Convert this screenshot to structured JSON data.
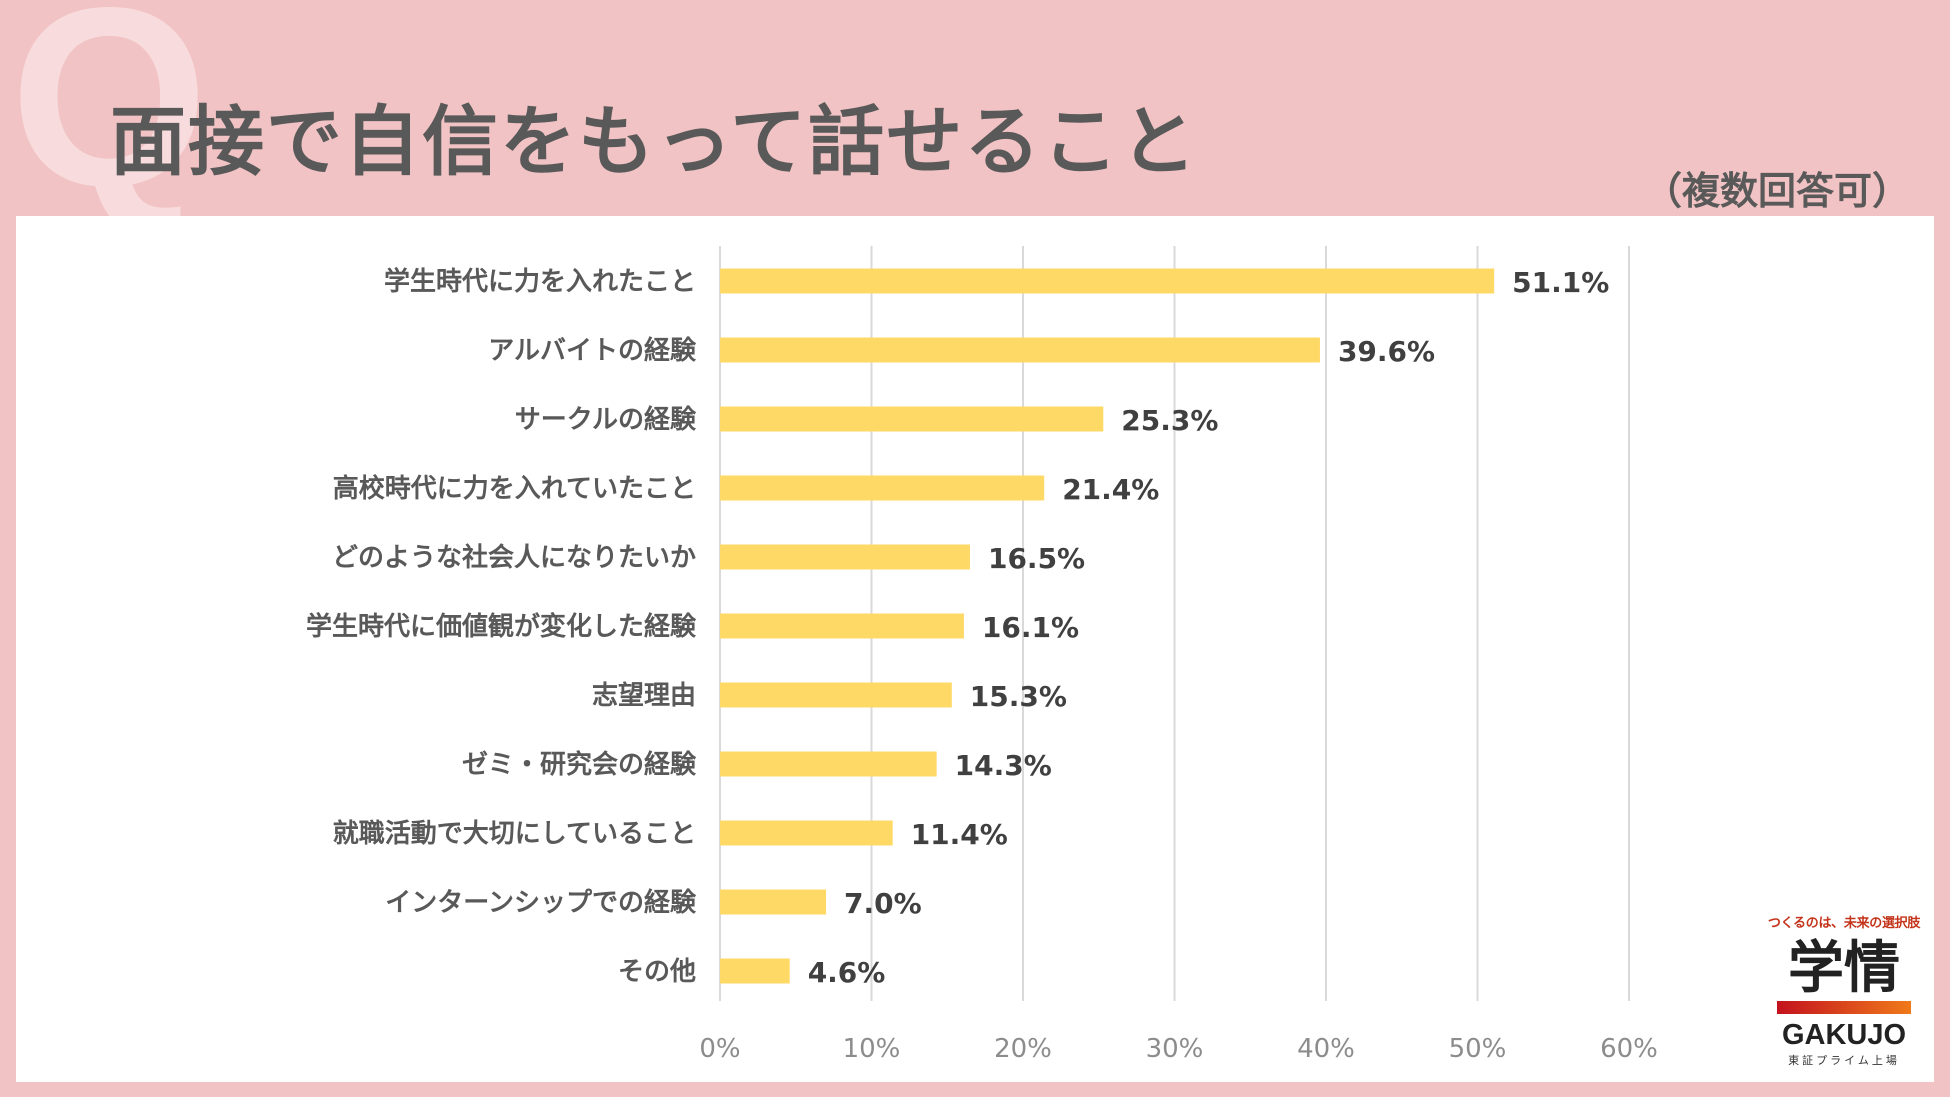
{
  "header": {
    "q_mark": "Q",
    "title": "面接で自信をもって話せること",
    "subtitle": "（複数回答可）"
  },
  "chart_data": {
    "type": "bar",
    "orientation": "horizontal",
    "categories": [
      "学生時代に力を入れたこと",
      "アルバイトの経験",
      "サークルの経験",
      "高校時代に力を入れていたこと",
      "どのような社会人になりたいか",
      "学生時代に価値観が変化した経験",
      "志望理由",
      "ゼミ・研究会の経験",
      "就職活動で大切にしていること",
      "インターンシップでの経験",
      "その他"
    ],
    "values": [
      51.1,
      39.6,
      25.3,
      21.4,
      16.5,
      16.1,
      15.3,
      14.3,
      11.4,
      7.0,
      4.6
    ],
    "value_labels": [
      "51.1%",
      "39.6%",
      "25.3%",
      "21.4%",
      "16.5%",
      "16.1%",
      "15.3%",
      "14.3%",
      "11.4%",
      "7.0%",
      "4.6%"
    ],
    "xlim": [
      0,
      60
    ],
    "ticks": [
      0,
      10,
      20,
      30,
      40,
      50,
      60
    ],
    "tick_labels": [
      "0%",
      "10%",
      "20%",
      "30%",
      "40%",
      "50%",
      "60%"
    ],
    "grid": true,
    "bar_color": "#ffd966",
    "grid_color": "#d9d9d9"
  },
  "logo": {
    "tagline": "つくるのは、未来の選択肢",
    "mark": "学情",
    "name": "GAKUJO",
    "sub": "東証プライム上場"
  }
}
